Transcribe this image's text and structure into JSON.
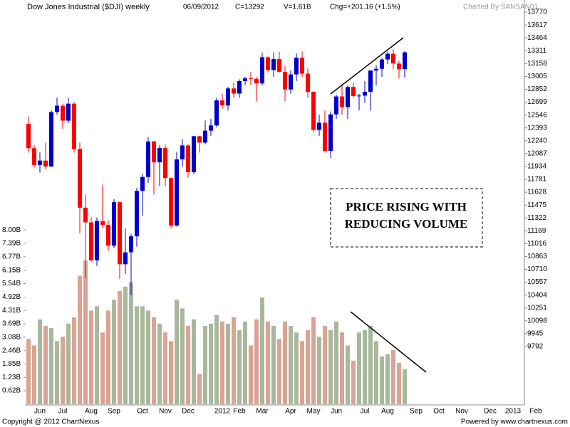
{
  "chart_data": {
    "type": "candlestick",
    "title": "Dow Jones Industrial ($DJI) weekly",
    "header": [
      "06/09/2012",
      "C=13292",
      "V=1.61B",
      "Chg=+201.16 (+1.5%)"
    ],
    "credit": "Charted By SANSAN01",
    "footer_left": "Copyright @ 2012 ChartNexus",
    "footer_right": "Powered by www.chartnexus.com",
    "annotation": [
      "PRICE RISING WITH",
      "REDUCING VOLUME"
    ],
    "categories": [
      null,
      null,
      "Jun",
      null,
      null,
      null,
      "Jul",
      null,
      null,
      null,
      null,
      "Aug",
      null,
      null,
      null,
      "Sep",
      null,
      null,
      null,
      null,
      "Oct",
      null,
      null,
      null,
      "Nov",
      null,
      null,
      null,
      "Dec",
      null,
      null,
      null,
      null,
      null,
      "2012",
      null,
      null,
      "Feb",
      null,
      null,
      null,
      "Mar",
      null,
      null,
      null,
      null,
      "Apr",
      null,
      null,
      null,
      "May",
      null,
      null,
      null,
      "Jun",
      null,
      null,
      null,
      null,
      "Jul",
      null,
      null,
      null,
      "Aug",
      null,
      null,
      null,
      null,
      "Sep",
      null,
      null,
      null,
      "Oct",
      null,
      null,
      null,
      "Nov",
      null,
      null,
      null,
      null,
      "Dec",
      null,
      null,
      null,
      "2013",
      null,
      null,
      null,
      "Feb"
    ],
    "open": [
      12441,
      12151,
      11952,
      12004,
      11934,
      12582,
      12657,
      12479,
      12681,
      12143,
      11444,
      11269,
      10818,
      11285,
      11240,
      10992,
      11509,
      10771,
      10913,
      11103,
      11644,
      11809,
      12232,
      11983,
      12153,
      11796,
      11231,
      12019,
      12184,
      11867,
      12294,
      12218,
      12360,
      12422,
      12720,
      12660,
      12862,
      12801,
      12950,
      12982,
      12977,
      12922,
      13233,
      13081,
      13212,
      13060,
      12850,
      13029,
      13228,
      13038,
      12821,
      12369,
      12455,
      12119,
      12554,
      12767,
      12640,
      12880,
      12772,
      12777,
      12823,
      13075,
      13096,
      13207,
      13275,
      13158,
      13091,
      null,
      null,
      null,
      null,
      null,
      null,
      null,
      null,
      null,
      null,
      null,
      null,
      null,
      null,
      null,
      null,
      null,
      null,
      null,
      null,
      null,
      null,
      null
    ],
    "high": [
      12530,
      12190,
      12100,
      12220,
      12600,
      12753,
      12680,
      12751,
      12700,
      12220,
      11600,
      11330,
      11327,
      11716,
      11295,
      11544,
      11520,
      11200,
      11130,
      11680,
      11850,
      12284,
      12238,
      12190,
      12200,
      11800,
      12107,
      12260,
      12200,
      12300,
      12300,
      12480,
      12500,
      12750,
      12800,
      12880,
      12930,
      12970,
      13000,
      13055,
      13000,
      13290,
      13250,
      13290,
      13300,
      13130,
      13080,
      13280,
      13300,
      13100,
      12830,
      12550,
      12600,
      12590,
      12790,
      12900,
      12900,
      12930,
      12800,
      12950,
      13080,
      13140,
      13220,
      13300,
      13330,
      13190,
      13306,
      null,
      null,
      null,
      null,
      null,
      null,
      null,
      null,
      null,
      null,
      null,
      null,
      null,
      null,
      null,
      null,
      null,
      null,
      null,
      null,
      null,
      null,
      null
    ],
    "low": [
      12098,
      11920,
      11862,
      11900,
      11930,
      12550,
      12380,
      12450,
      12100,
      11139,
      10604,
      10800,
      10750,
      11200,
      10930,
      10960,
      10597,
      10656,
      10404,
      10980,
      11350,
      11740,
      11600,
      11700,
      11700,
      11200,
      11220,
      11930,
      11800,
      11840,
      12100,
      12200,
      12300,
      12400,
      12620,
      12600,
      12750,
      12750,
      12900,
      12900,
      12710,
      12900,
      13050,
      13000,
      13050,
      12710,
      12800,
      12950,
      13000,
      12750,
      12340,
      12300,
      12100,
      12035,
      12500,
      12550,
      12500,
      12750,
      12600,
      12690,
      12600,
      12900,
      13000,
      13150,
      13090,
      12980,
      12990,
      null,
      null,
      null,
      null,
      null,
      null,
      null,
      null,
      null,
      null,
      null,
      null,
      null,
      null,
      null,
      null,
      null,
      null,
      null,
      null,
      null,
      null,
      null
    ],
    "close": [
      12151,
      11952,
      12004,
      11934,
      12582,
      12657,
      12479,
      12681,
      12143,
      11444,
      11269,
      10818,
      11285,
      11240,
      10992,
      11509,
      10771,
      10913,
      11103,
      11644,
      11809,
      12232,
      11983,
      12153,
      11796,
      11231,
      12019,
      12184,
      11867,
      12294,
      12218,
      12360,
      12422,
      12720,
      12660,
      12862,
      12801,
      12950,
      12982,
      12977,
      12922,
      13233,
      13081,
      13212,
      13060,
      12850,
      13029,
      13228,
      13038,
      12821,
      12369,
      12455,
      12119,
      12554,
      12767,
      12640,
      12880,
      12772,
      12777,
      12823,
      13075,
      13096,
      13207,
      13275,
      13158,
      13091,
      13292,
      null,
      null,
      null,
      null,
      null,
      null,
      null,
      null,
      null,
      null,
      null,
      null,
      null,
      null,
      null,
      null,
      null,
      null,
      null,
      null,
      null,
      null,
      null
    ],
    "volume": [
      3.0,
      2.7,
      3.9,
      3.6,
      3.5,
      2.9,
      3.1,
      3.7,
      4.0,
      5.9,
      6.6,
      4.3,
      4.5,
      3.3,
      4.3,
      4.8,
      5.2,
      5.4,
      5.6,
      4.5,
      4.5,
      4.3,
      4.0,
      3.7,
      3.3,
      2.9,
      4.8,
      4.4,
      3.6,
      3.9,
      1.4,
      3.6,
      3.7,
      4.1,
      3.8,
      3.7,
      4.0,
      3.4,
      3.8,
      2.7,
      3.9,
      4.9,
      3.8,
      3.6,
      3.0,
      3.8,
      3.6,
      3.3,
      2.9,
      3.4,
      4.0,
      3.1,
      3.6,
      3.4,
      3.8,
      3.3,
      2.7,
      2.0,
      3.3,
      3.4,
      3.6,
      2.9,
      2.2,
      2.3,
      2.5,
      1.9,
      1.61,
      null,
      null,
      null,
      null,
      null,
      null,
      null,
      null,
      null,
      null,
      null,
      null,
      null,
      null,
      null,
      null,
      null,
      null,
      null,
      null,
      null,
      null,
      null
    ],
    "up_color": "#0000cc",
    "down_color": "#ff0000",
    "volume_up_color": "#a9b89c",
    "volume_down_color": "#d9a493",
    "ylim": [
      9106,
      13872
    ],
    "yticks": [
      13770,
      13617,
      13464,
      13311,
      13158,
      13005,
      12852,
      12699,
      12546,
      12393,
      12240,
      12087,
      11934,
      11781,
      11628,
      11475,
      11322,
      11169,
      11016,
      10863,
      10710,
      10557,
      10404,
      10251,
      10098,
      9945,
      9792
    ],
    "y2lim": [
      0,
      18.4
    ],
    "y2ticks": [
      {
        "value": 0.62,
        "label": "0.62B"
      },
      {
        "value": 1.23,
        "label": "1.23B"
      },
      {
        "value": 1.85,
        "label": "1.85B"
      },
      {
        "value": 2.46,
        "label": "2.46B"
      },
      {
        "value": 3.08,
        "label": "3.08B"
      },
      {
        "value": 3.69,
        "label": "3.69B"
      },
      {
        "value": 4.31,
        "label": "4.31B"
      },
      {
        "value": 4.92,
        "label": "4.92B"
      },
      {
        "value": 5.54,
        "label": "5.54B"
      },
      {
        "value": 6.15,
        "label": "6.15B"
      },
      {
        "value": 6.77,
        "label": "6.77B"
      },
      {
        "value": 7.39,
        "label": "7.39B"
      },
      {
        "value": 8.0,
        "label": "8.00B"
      }
    ]
  }
}
